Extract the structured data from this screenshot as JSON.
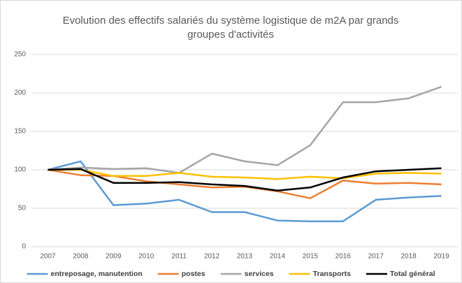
{
  "chart_data": {
    "type": "line",
    "title": "Evolution des effectifs salariés du système logistique de m2A par grands groupes d'activités",
    "categories": [
      "2007",
      "2008",
      "2009",
      "2010",
      "2011",
      "2012",
      "2013",
      "2014",
      "2015",
      "2016",
      "2017",
      "2018",
      "2019"
    ],
    "series": [
      {
        "name": "entreposage, manutention",
        "color": "#5b9bd5",
        "values": [
          100,
          111,
          54,
          56,
          61,
          45,
          45,
          34,
          33,
          33,
          61,
          64,
          66
        ]
      },
      {
        "name": "postes",
        "color": "#ed7d31",
        "values": [
          100,
          93,
          92,
          85,
          81,
          77,
          78,
          72,
          63,
          86,
          82,
          83,
          81
        ]
      },
      {
        "name": "services",
        "color": "#a5a5a5",
        "values": [
          100,
          103,
          101,
          102,
          96,
          121,
          111,
          106,
          132,
          188,
          188,
          193,
          208
        ]
      },
      {
        "name": "Transports",
        "color": "#ffc000",
        "values": [
          100,
          100,
          92,
          92,
          96,
          91,
          90,
          88,
          91,
          89,
          95,
          96,
          95
        ]
      },
      {
        "name": "Total général",
        "color": "#000000",
        "values": [
          100,
          101,
          83,
          83,
          84,
          81,
          79,
          73,
          77,
          90,
          98,
          100,
          102
        ]
      }
    ],
    "ylim": [
      0,
      250
    ],
    "yticks": [
      0,
      50,
      100,
      150,
      200,
      250
    ],
    "grid": true,
    "legend": "bottom"
  }
}
